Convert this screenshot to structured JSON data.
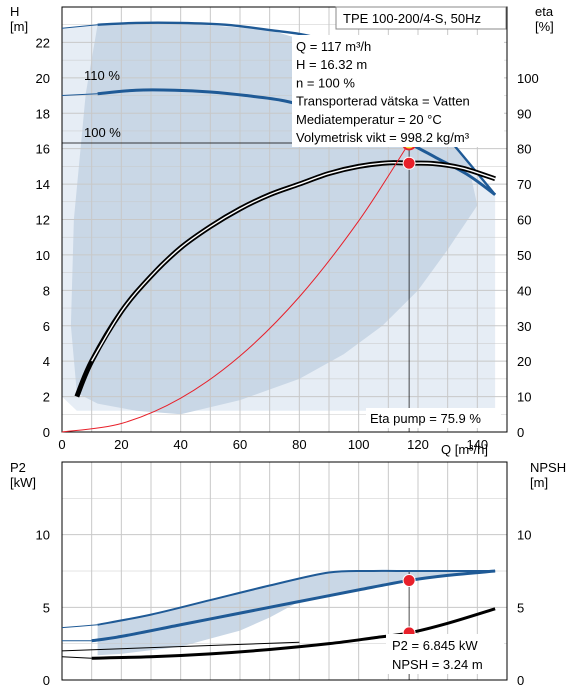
{
  "colors": {
    "curve_blue": "#1f5a96",
    "envelope_fill": "#c9d7e6",
    "envelope_light": "#e6edf5",
    "duty_point": "#e8202a",
    "system_curve": "#e8202a",
    "marker_yellow": "#f5e13a",
    "grid": "#c8c8c8"
  },
  "chart_data": [
    {
      "type": "line",
      "title": "TPE 100-200/4-S, 50Hz",
      "xlabel": "Q [m³/h]",
      "ylabel_left": "H\n[m]",
      "ylabel_right": "eta\n[%]",
      "xlim": [
        0,
        150
      ],
      "ylim_left": [
        0,
        24
      ],
      "ylim_right": [
        0,
        120
      ],
      "xticks": [
        "0",
        "20",
        "40",
        "60",
        "80",
        "100",
        "120",
        "140"
      ],
      "yticks_left": [
        "0",
        "2",
        "4",
        "6",
        "8",
        "10",
        "12",
        "14",
        "16",
        "18",
        "20",
        "22"
      ],
      "yticks_right": [
        "0",
        "10",
        "20",
        "30",
        "40",
        "50",
        "60",
        "70",
        "80",
        "90",
        "100"
      ],
      "grid": true,
      "info_lines": [
        "Q = 117 m³/h",
        "H = 16.32 m",
        "n = 100 %",
        "Transporterad vätska = Vatten",
        "Mediatemperatur = 20 °C",
        "Volymetrisk vikt = 998.2 kg/m³"
      ],
      "curve_labels": [
        "110 %",
        "100 %"
      ],
      "eta_label": "Eta pump = 75.9 %",
      "series": [
        {
          "name": "110 %",
          "axis": "left",
          "x": [
            0,
            12,
            25,
            40,
            55,
            70,
            85,
            100,
            112,
            125,
            146
          ],
          "y": [
            22.8,
            23.0,
            23.1,
            23.1,
            23.0,
            22.7,
            22.3,
            21.2,
            19.8,
            17.6,
            13.4
          ]
        },
        {
          "name": "100 %",
          "axis": "left",
          "x": [
            0,
            12,
            25,
            38,
            50,
            62,
            75,
            88,
            100,
            110,
            117,
            126,
            137,
            146
          ],
          "y": [
            19.0,
            19.1,
            19.3,
            19.3,
            19.2,
            19.0,
            18.7,
            18.1,
            17.4,
            16.8,
            16.3,
            15.5,
            14.5,
            13.4
          ]
        },
        {
          "name": "eta",
          "axis": "right",
          "x": [
            5,
            10,
            20,
            30,
            40,
            50,
            60,
            70,
            80,
            90,
            100,
            110,
            117,
            125,
            135,
            146
          ],
          "y": [
            10,
            20,
            34,
            44,
            52,
            58,
            63,
            67,
            70,
            73,
            75,
            76,
            75.9,
            75.8,
            74.5,
            71.5
          ]
        },
        {
          "name": "system",
          "axis": "left",
          "x": [
            0,
            20,
            40,
            60,
            80,
            100,
            117
          ],
          "y": [
            0,
            0.48,
            1.91,
            4.29,
            7.63,
            11.92,
            16.32
          ]
        }
      ],
      "duty_point": {
        "x": 117,
        "y": 16.32,
        "eta": 75.9
      }
    },
    {
      "type": "line",
      "xlabel": "",
      "ylabel_left": "P2\n[kW]",
      "ylabel_right": "NPSH\n[m]",
      "xlim": [
        0,
        150
      ],
      "ylim_left": [
        0,
        15
      ],
      "ylim_right": [
        0,
        15
      ],
      "yticks_left": [
        "0",
        "5",
        "10"
      ],
      "yticks_right": [
        "0",
        "5",
        "10"
      ],
      "grid": true,
      "info_lines": [
        "P2 = 6.845 kW",
        "NPSH = 3.24 m"
      ],
      "series": [
        {
          "name": "P2 110 %",
          "axis": "left",
          "x": [
            0,
            12,
            30,
            50,
            70,
            90,
            105,
            117,
            130,
            146
          ],
          "y": [
            3.6,
            3.8,
            4.5,
            5.5,
            6.5,
            7.4,
            7.5,
            7.5,
            7.5,
            7.5
          ]
        },
        {
          "name": "P2 100 %",
          "axis": "left",
          "x": [
            10,
            20,
            40,
            60,
            80,
            100,
            117,
            130,
            146
          ],
          "y": [
            2.7,
            3.0,
            3.8,
            4.6,
            5.4,
            6.2,
            6.85,
            7.2,
            7.5
          ]
        },
        {
          "name": "NPSH",
          "axis": "right",
          "x": [
            10,
            30,
            50,
            70,
            90,
            105,
            117,
            130,
            146
          ],
          "y": [
            1.5,
            1.6,
            1.8,
            2.1,
            2.5,
            2.9,
            3.24,
            3.9,
            4.9
          ]
        }
      ],
      "duty_point": {
        "x": 117,
        "p2": 6.845,
        "npsh": 3.24
      }
    }
  ]
}
